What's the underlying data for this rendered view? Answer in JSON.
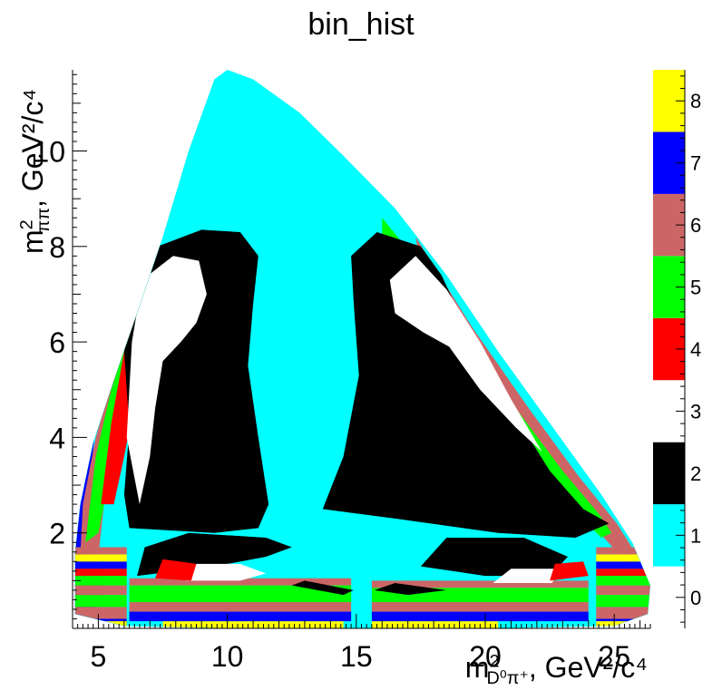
{
  "chart_data": {
    "type": "heatmap",
    "title": "bin_hist",
    "xlabel_main": "m",
    "xlabel_sup": "2",
    "xlabel_sub": "D⁰π⁺",
    "xlabel_unit": ", GeV²/c⁴",
    "ylabel_main": "m",
    "ylabel_sup": "2",
    "ylabel_sub": "ππ",
    "ylabel_unit": ", GeV²/c⁴",
    "xlim": [
      4.0,
      26.4
    ],
    "ylim": [
      0.0,
      11.7
    ],
    "x_ticks": [
      5,
      10,
      15,
      20,
      25
    ],
    "x_tick_labels": [
      "5",
      "10",
      "15",
      "20",
      "25"
    ],
    "y_ticks": [
      2,
      4,
      6,
      8,
      10
    ],
    "y_tick_labels": [
      "2",
      "4",
      "6",
      "8",
      "10"
    ],
    "z_range": [
      -0.5,
      8.5
    ],
    "z_ticks": [
      0,
      1,
      2,
      3,
      4,
      5,
      6,
      7,
      8
    ],
    "z_tick_labels": [
      "0",
      "1",
      "2",
      "3",
      "4",
      "5",
      "6",
      "7",
      "8"
    ],
    "palette": [
      "#ffffff",
      "#00ffff",
      "#000000",
      "#ffffff",
      "#ff0000",
      "#00ff00",
      "#cc6666",
      "#0000ff",
      "#ffff00"
    ],
    "regions": [
      {
        "bin": 1,
        "description": "main cyan region filling Dalitz boundary"
      },
      {
        "bin": 2,
        "description": "two large black lobes left and right of center"
      },
      {
        "bin": 3,
        "description": "white crescents inside black lobes"
      },
      {
        "bin": 4,
        "description": "red bands along edges"
      },
      {
        "bin": 5,
        "description": "green bands along edges"
      },
      {
        "bin": 6,
        "description": "rose bands along edges"
      },
      {
        "bin": 7,
        "description": "blue outer edge bands"
      },
      {
        "bin": 8,
        "description": "yellow bottom bands"
      }
    ]
  }
}
